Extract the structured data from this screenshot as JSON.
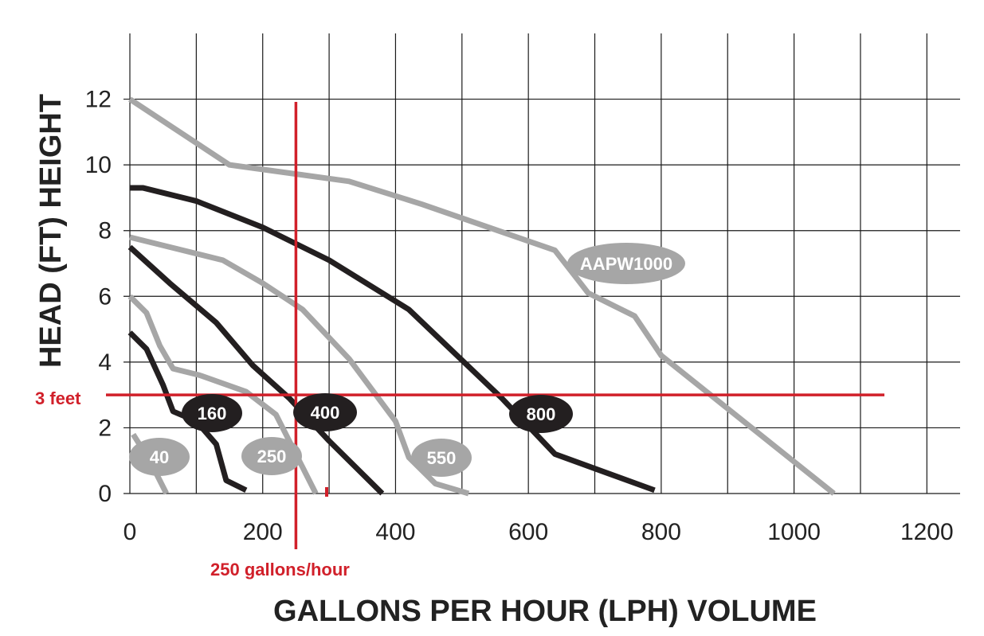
{
  "chart_data": {
    "type": "line",
    "title": "",
    "xlabel": "GALLONS PER HOUR  (LPH) VOLUME",
    "ylabel": "HEAD (FT) HEIGHT",
    "xlim": [
      0,
      1250
    ],
    "ylim": [
      0,
      14
    ],
    "x_ticks": [
      "0",
      "200",
      "400",
      "600",
      "800",
      "1000",
      "1200"
    ],
    "y_ticks": [
      "0",
      "2",
      "4",
      "6",
      "8",
      "10",
      "12"
    ],
    "grid": true,
    "series": [
      {
        "name": "AAPW1000",
        "color": "#a6a6a6",
        "x": [
          0,
          150,
          330,
          440,
          640,
          690,
          760,
          800,
          1060
        ],
        "y": [
          12,
          10,
          9.5,
          8.8,
          7.4,
          6.1,
          5.4,
          4.2,
          0
        ]
      },
      {
        "name": "800",
        "color": "#231f20",
        "x": [
          0,
          20,
          100,
          200,
          300,
          420,
          560,
          640,
          790
        ],
        "y": [
          9.3,
          9.3,
          8.9,
          8.1,
          7.1,
          5.6,
          2.9,
          1.2,
          0.1
        ]
      },
      {
        "name": "550",
        "color": "#a6a6a6",
        "x": [
          0,
          60,
          140,
          200,
          260,
          330,
          400,
          420,
          460,
          510
        ],
        "y": [
          7.8,
          7.5,
          7.1,
          6.4,
          5.6,
          4.1,
          2.2,
          1.1,
          0.3,
          0
        ]
      },
      {
        "name": "400",
        "color": "#231f20",
        "x": [
          0,
          60,
          130,
          185,
          240,
          300,
          380
        ],
        "y": [
          7.5,
          6.4,
          5.2,
          3.9,
          2.9,
          1.6,
          0
        ]
      },
      {
        "name": "250",
        "color": "#a6a6a6",
        "x": [
          0,
          25,
          45,
          65,
          105,
          175,
          220,
          260,
          280
        ],
        "y": [
          6,
          5.5,
          4.5,
          3.8,
          3.6,
          3.1,
          2.4,
          0.8,
          0
        ]
      },
      {
        "name": "160",
        "color": "#231f20",
        "x": [
          0,
          25,
          50,
          65,
          100,
          130,
          145,
          175
        ],
        "y": [
          4.9,
          4.4,
          3.3,
          2.5,
          2.2,
          1.5,
          0.4,
          0.1
        ]
      },
      {
        "name": "40",
        "color": "#a6a6a6",
        "x": [
          5,
          30,
          55
        ],
        "y": [
          1.8,
          1,
          0
        ]
      }
    ],
    "reference_lines": {
      "horizontal": {
        "y": 3,
        "label": "3 feet",
        "color": "#d1202a"
      },
      "vertical": {
        "x": 250,
        "label": "250 gallons/hour",
        "color": "#d1202a"
      }
    }
  },
  "labels": {
    "aapw1000": "AAPW1000",
    "m800": "800",
    "m550": "550",
    "m400": "400",
    "m250": "250",
    "m160": "160",
    "m40": "40"
  }
}
